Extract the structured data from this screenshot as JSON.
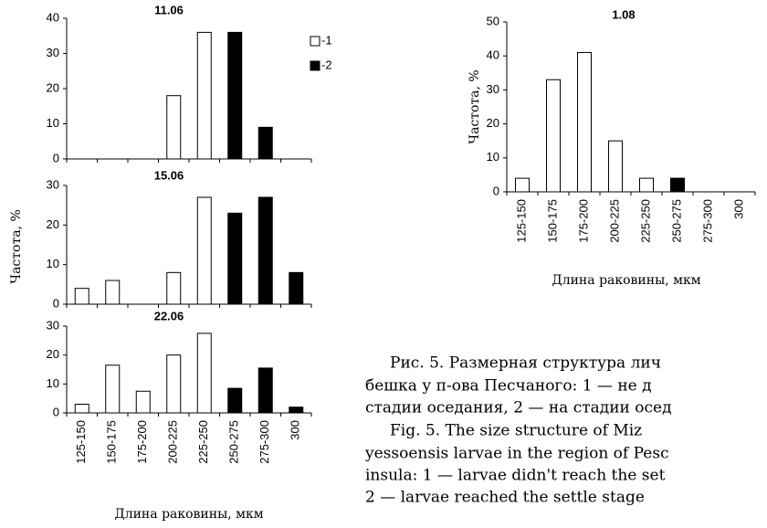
{
  "chart_data": [
    {
      "type": "bar",
      "title": "11.06",
      "categories": [
        null,
        null,
        null,
        null,
        null,
        null,
        null,
        null
      ],
      "series": [
        {
          "name": "-1",
          "color": "#ffffff",
          "values": [
            0,
            0,
            0,
            18,
            36,
            0,
            0,
            0
          ]
        },
        {
          "name": "-2",
          "color": "#000000",
          "values": [
            0,
            0,
            0,
            0,
            0,
            36,
            9,
            0
          ]
        }
      ],
      "ylim": [
        0,
        40
      ],
      "yticks": [
        0,
        10,
        20,
        30,
        40
      ],
      "legend": "upper right"
    },
    {
      "type": "bar",
      "title": "15.06",
      "y_label": "Частота, %",
      "categories": [
        null,
        null,
        null,
        null,
        null,
        null,
        null,
        null
      ],
      "series": [
        {
          "color": "#ffffff",
          "values": [
            4,
            6,
            0,
            8,
            27,
            0,
            0,
            0
          ]
        },
        {
          "color": "#000000",
          "values": [
            0,
            0,
            0,
            0,
            0,
            23,
            27,
            8
          ]
        }
      ],
      "ylim": [
        0,
        30
      ],
      "yticks": [
        0,
        10,
        20,
        30
      ]
    },
    {
      "type": "bar",
      "title": "22.06",
      "x_label": "Длина раковины, мкм",
      "categories": [
        "125-150",
        "150-175",
        "175-200",
        "200-225",
        "225-250",
        "250-275",
        "275-300",
        "300"
      ],
      "series": [
        {
          "color": "#ffffff",
          "values": [
            3,
            16.5,
            7.5,
            20,
            27.5,
            0,
            0,
            0
          ]
        },
        {
          "color": "#000000",
          "values": [
            0,
            0,
            0,
            0,
            0,
            8.5,
            15.5,
            2
          ]
        }
      ],
      "ylim": [
        0,
        30
      ],
      "yticks": [
        0,
        10,
        20,
        30
      ]
    },
    {
      "type": "bar",
      "title": "1.08",
      "y_label": "Частота, %",
      "x_label": "Длина раковины, мкм",
      "categories": [
        "125-150",
        "150-175",
        "175-200",
        "200-225",
        "225-250",
        "250-275",
        "275-300",
        "300"
      ],
      "series": [
        {
          "color": "#ffffff",
          "values": [
            4,
            33,
            41,
            15,
            4,
            0,
            0,
            0
          ]
        },
        {
          "color": "#000000",
          "values": [
            0,
            0,
            0,
            0,
            0,
            4,
            0,
            0
          ]
        }
      ],
      "ylim": [
        0,
        50
      ],
      "yticks": [
        0,
        10,
        20,
        30,
        40,
        50
      ]
    }
  ],
  "caption": {
    "ru": [
      "Рис. 5. Размерная структура лич",
      "бешка у п-ова Песчаного: 1 — не д",
      "стадии оседания, 2 — на стадии осед"
    ],
    "en": [
      "Fig. 5. The size structure of Miz",
      "yessoensis larvae in the region of Pesc",
      "insula: 1 — larvae didn't reach the set",
      "2 — larvae reached the settle stage"
    ]
  }
}
